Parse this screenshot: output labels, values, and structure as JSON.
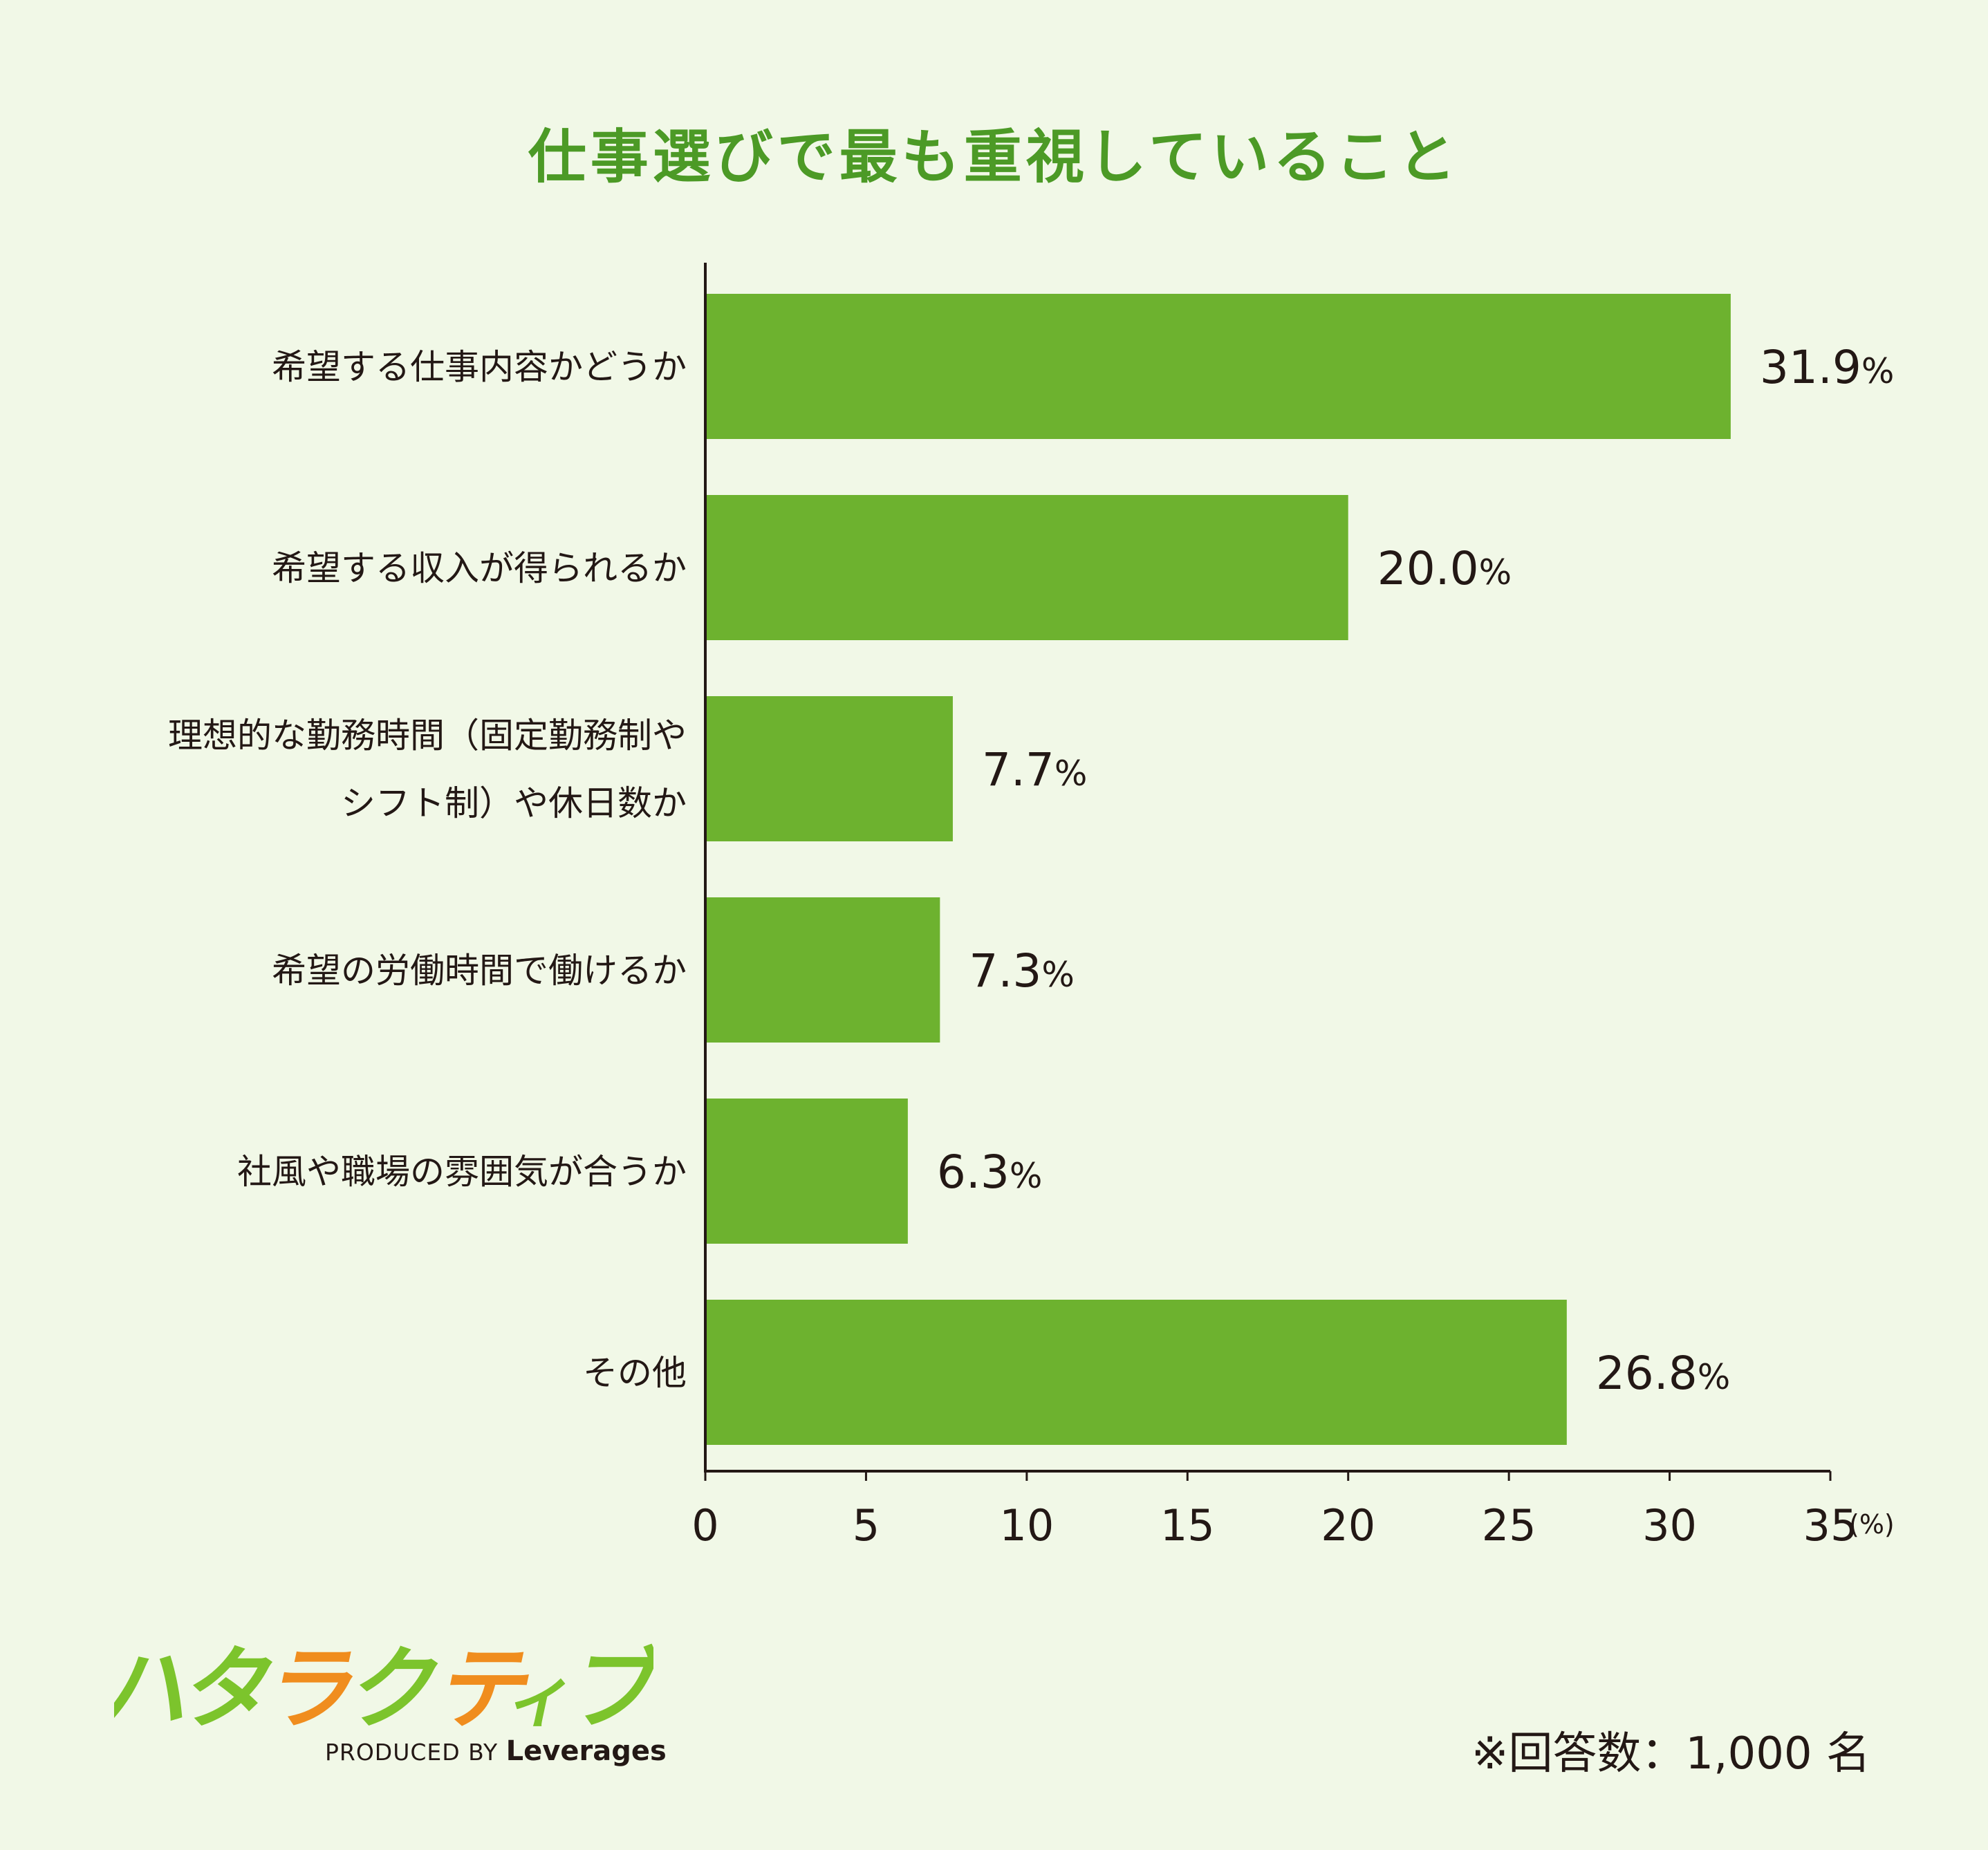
{
  "title": "仕事選びで最も重視していること",
  "chart_data": {
    "type": "bar",
    "orientation": "horizontal",
    "categories": [
      [
        "希望する仕事内容かどうか"
      ],
      [
        "希望する収入が得られるか"
      ],
      [
        "理想的な勤務時間（固定勤務制や",
        "シフト制）や休日数か"
      ],
      [
        "希望の労働時間で働けるか"
      ],
      [
        "社風や職場の雰囲気が合うか"
      ],
      [
        "その他"
      ]
    ],
    "values": [
      31.9,
      20.0,
      7.7,
      7.3,
      6.3,
      26.8
    ],
    "value_labels": [
      "31.9",
      "20.0",
      "7.7",
      "7.3",
      "6.3",
      "26.8"
    ],
    "value_suffix": "%",
    "x_ticks": [
      0,
      5,
      10,
      15,
      20,
      25,
      30,
      35
    ],
    "x_unit": "(%)",
    "xlim": [
      0,
      35
    ],
    "grid": false,
    "bar_color": "#6db22f"
  },
  "logo": {
    "letters": [
      "ハ",
      "タ",
      "ラ",
      "ク",
      "テ",
      "ィ",
      "ブ"
    ],
    "byline_prefix": "PRODUCED BY",
    "byline_brand": "Leverages",
    "green": "#7cc42c",
    "orange": "#f08d1e"
  },
  "footnote": "※回答数：1,000 名"
}
